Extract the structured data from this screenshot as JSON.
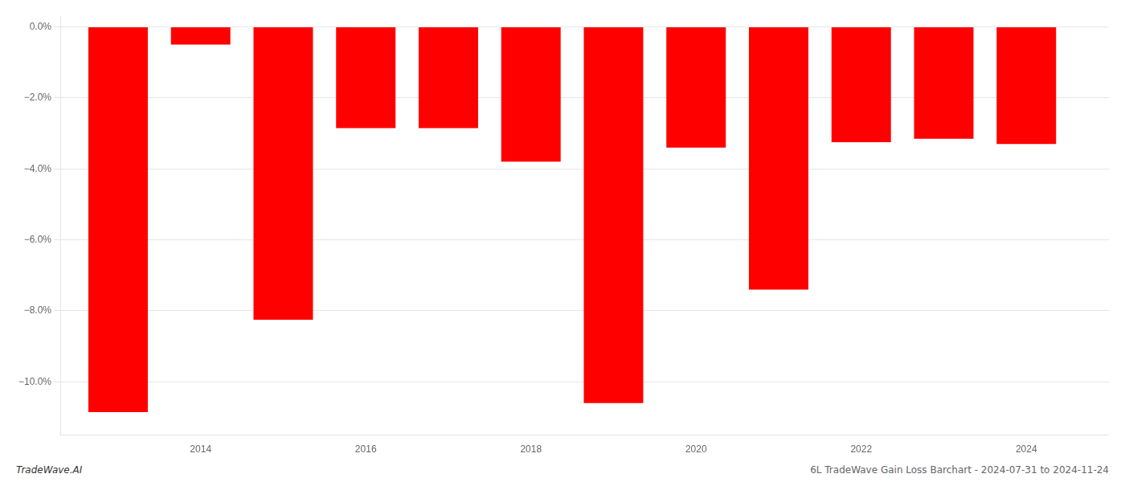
{
  "chart_data": {
    "type": "bar",
    "x": [
      2013,
      2014,
      2015,
      2016,
      2017,
      2018,
      2019,
      2020,
      2021,
      2022,
      2023,
      2024
    ],
    "values": [
      -10.85,
      -0.5,
      -8.25,
      -2.85,
      -2.85,
      -3.8,
      -10.6,
      -3.4,
      -7.4,
      -3.25,
      -3.15,
      -3.3
    ],
    "color": "#ff0000",
    "xlim": [
      2012.3,
      2025.0
    ],
    "xticks": [
      2014,
      2016,
      2018,
      2020,
      2022,
      2024
    ],
    "ylim": [
      -11.5,
      0.3
    ],
    "yticks": [
      {
        "value": 0.0,
        "label": "0.0%"
      },
      {
        "value": -2.0,
        "label": "−2.0%"
      },
      {
        "value": -4.0,
        "label": "−4.0%"
      },
      {
        "value": -6.0,
        "label": "−6.0%"
      },
      {
        "value": -8.0,
        "label": "−8.0%"
      },
      {
        "value": -10.0,
        "label": "−10.0%"
      }
    ],
    "grid": true,
    "annotations": [
      "TradeWave.AI",
      "6L TradeWave Gain Loss Barchart - 2024-07-31 to 2024-11-24"
    ]
  }
}
